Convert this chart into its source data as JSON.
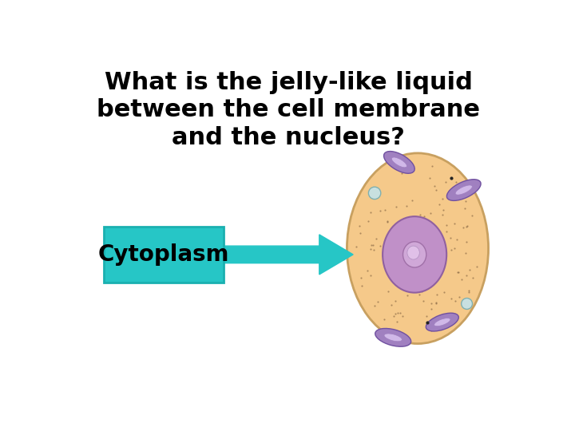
{
  "question_line1": "What is the jelly-like liquid",
  "question_line2": "between the cell membrane",
  "question_line3": "and the nucleus?",
  "answer_text": "Cytoplasm",
  "bg_color": "#ffffff",
  "question_color": "#000000",
  "answer_color": "#000000",
  "box_fill_color": "#26c6c6",
  "box_edge_color": "#1ab0b0",
  "arrow_color": "#26c6c6",
  "cell_fill_color": "#f5c98a",
  "cell_edge_color": "#c8a060",
  "nucleus_fill_color": "#c090c8",
  "nucleus_edge_color": "#9060a0",
  "nucleolus_fill_color": "#d0a8d8",
  "nucleolus_edge_color": "#a070a8",
  "organelle_fill_color": "#a080c0",
  "organelle_edge_color": "#7050a0",
  "vacuole_fill_color": "#c8e0e0",
  "vacuole_edge_color": "#80b0b0",
  "dot_color": "#806040",
  "question_fontsize": 22,
  "answer_fontsize": 20
}
